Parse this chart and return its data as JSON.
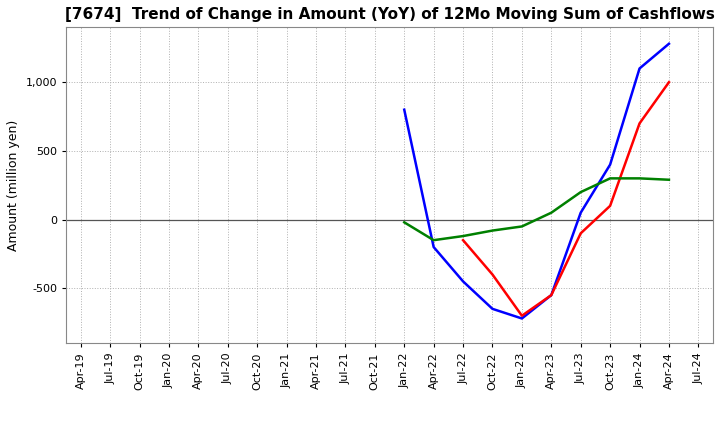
{
  "title": "[7674]  Trend of Change in Amount (YoY) of 12Mo Moving Sum of Cashflows",
  "ylabel": "Amount (million yen)",
  "title_fontsize": 11,
  "label_fontsize": 9,
  "tick_fontsize": 8,
  "background_color": "#ffffff",
  "grid_color": "#b0b0b0",
  "dates": [
    "Apr-19",
    "Jul-19",
    "Oct-19",
    "Jan-20",
    "Apr-20",
    "Jul-20",
    "Oct-20",
    "Jan-21",
    "Apr-21",
    "Jul-21",
    "Oct-21",
    "Jan-22",
    "Apr-22",
    "Jul-22",
    "Oct-22",
    "Jan-23",
    "Apr-23",
    "Jul-23",
    "Oct-23",
    "Jan-24",
    "Apr-24",
    "Jul-24"
  ],
  "operating": [
    null,
    null,
    null,
    null,
    null,
    null,
    null,
    null,
    null,
    null,
    null,
    null,
    null,
    -150,
    -400,
    -700,
    -550,
    -100,
    100,
    700,
    1000,
    null
  ],
  "investing": [
    null,
    null,
    null,
    null,
    null,
    null,
    null,
    null,
    null,
    null,
    null,
    -20,
    -150,
    -120,
    -80,
    -50,
    50,
    200,
    300,
    300,
    290,
    null
  ],
  "free": [
    null,
    null,
    null,
    null,
    null,
    null,
    null,
    null,
    null,
    null,
    null,
    800,
    -200,
    -450,
    -650,
    -720,
    -550,
    50,
    400,
    1100,
    1280,
    null
  ],
  "operating_color": "#ff0000",
  "investing_color": "#008000",
  "free_color": "#0000ff",
  "ylim": [
    -900,
    1400
  ],
  "yticks": [
    -500,
    0,
    500,
    1000
  ]
}
